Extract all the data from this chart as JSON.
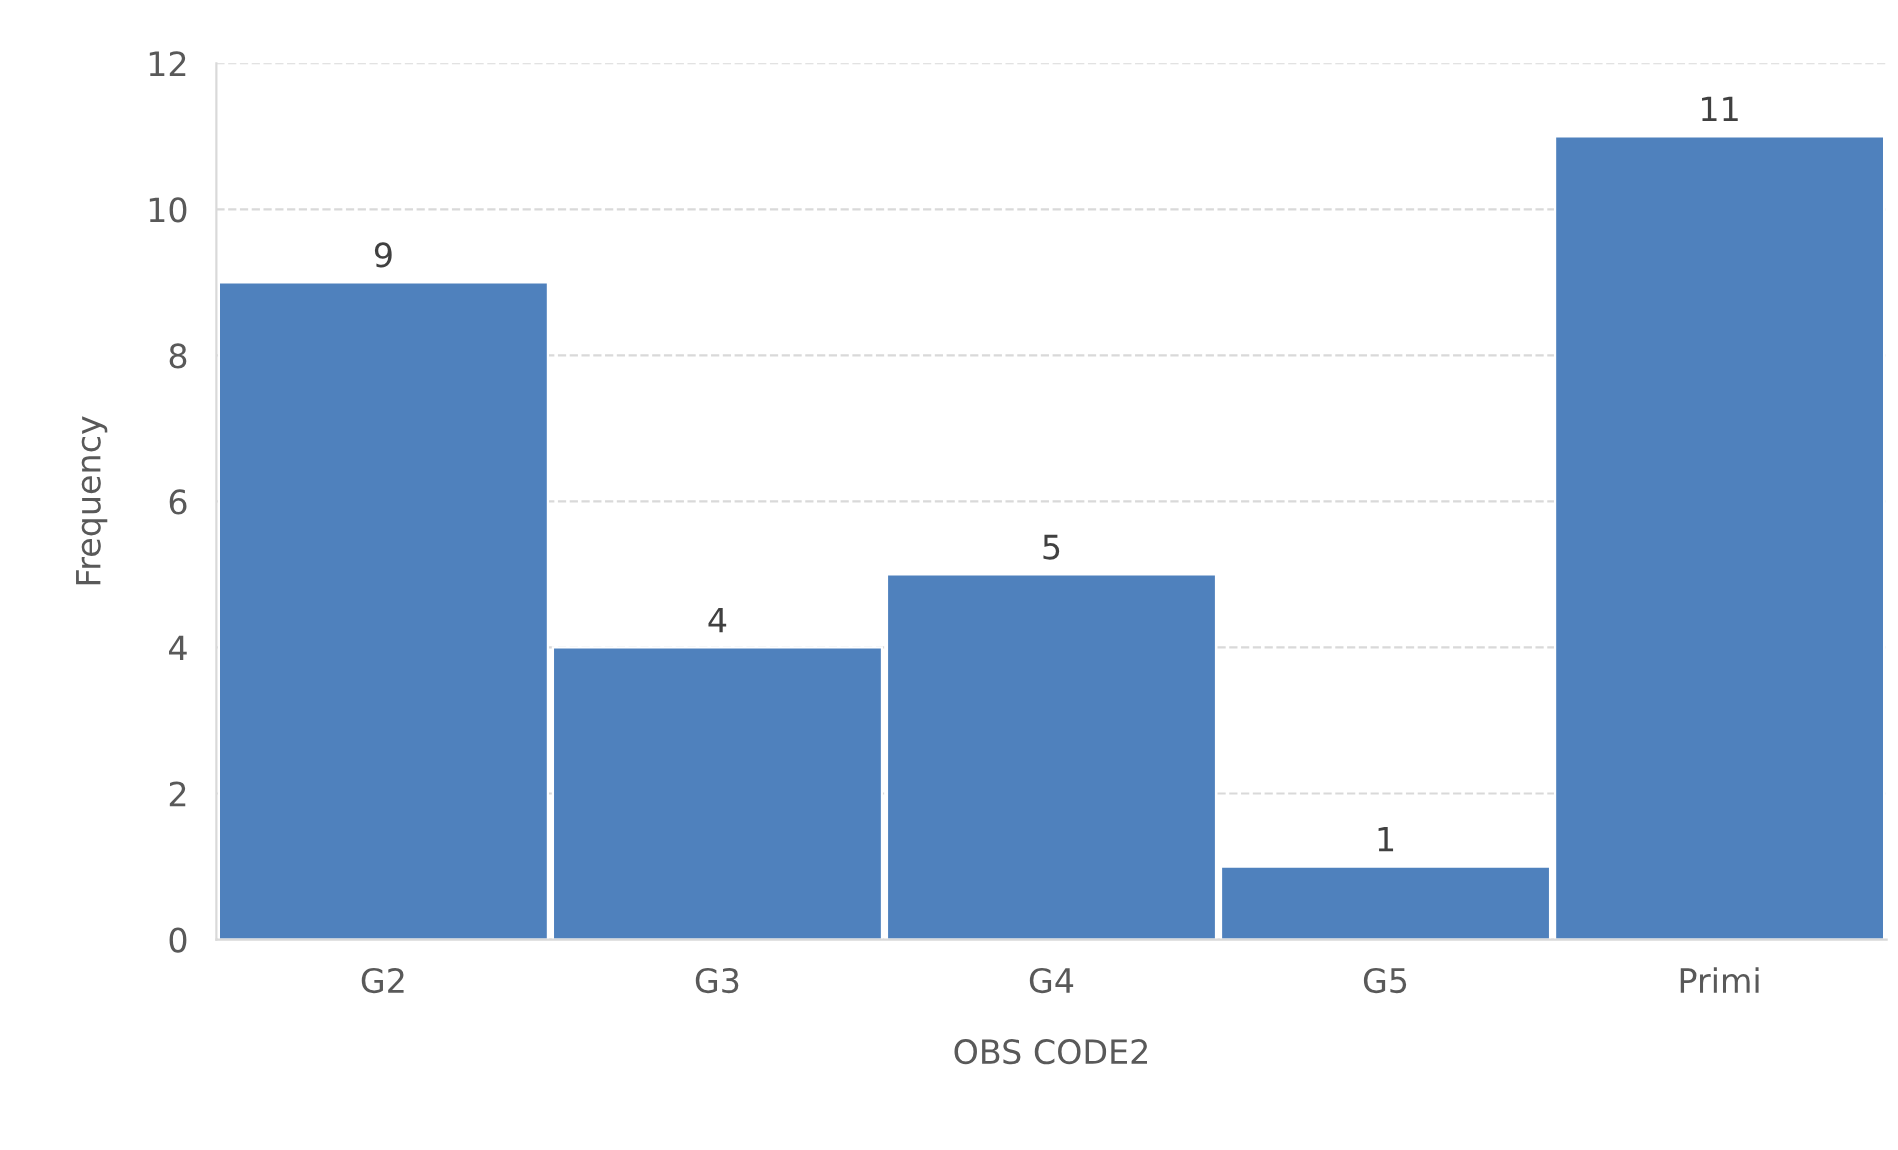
{
  "chart_data": {
    "type": "bar",
    "xlabel": "OBS CODE2",
    "ylabel": "Frequency",
    "categories": [
      "G2",
      "G3",
      "G4",
      "G5",
      "Primi"
    ],
    "values": [
      9,
      4,
      5,
      1,
      11
    ],
    "color": "#4f81bd",
    "ylim": [
      0,
      12
    ],
    "yticks": [
      0,
      2,
      4,
      6,
      8,
      10,
      12
    ],
    "grid": "y",
    "data_labels": true
  }
}
